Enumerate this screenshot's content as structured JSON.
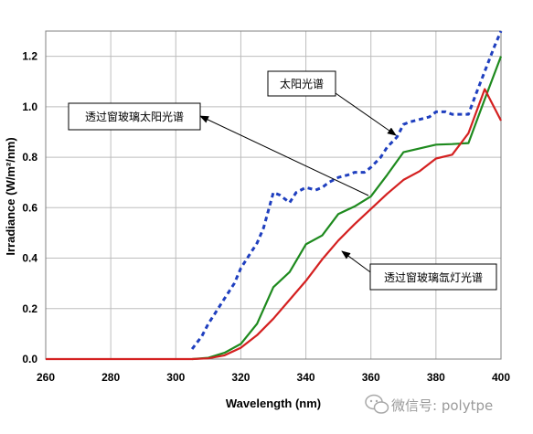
{
  "chart_data": {
    "type": "line",
    "title": "",
    "xlabel": "Wavelength (nm)",
    "ylabel": "Irradiance (W/m²/nm)",
    "xlim": [
      260,
      400
    ],
    "ylim": [
      0,
      1.3
    ],
    "xticks": [
      "260",
      "280",
      "300",
      "320",
      "340",
      "360",
      "380",
      "400"
    ],
    "yticks": [
      "0.0",
      "0.2",
      "0.4",
      "0.6",
      "0.8",
      "1.0",
      "1.2"
    ],
    "xtick_values": [
      260,
      280,
      300,
      320,
      340,
      360,
      380,
      400
    ],
    "ytick_values": [
      0,
      0.2,
      0.4,
      0.6,
      0.8,
      1.0,
      1.2
    ],
    "grid": true,
    "series": [
      {
        "name": "太阳光谱",
        "color": "#1f3fbf",
        "style": "dotted",
        "x": [
          305,
          308,
          310,
          312,
          315,
          318,
          320,
          322,
          325,
          327,
          330,
          332,
          335,
          337,
          340,
          343,
          345,
          347,
          350,
          353,
          355,
          358,
          360,
          363,
          365,
          368,
          370,
          372,
          375,
          378,
          380,
          383,
          385,
          388,
          390,
          392,
          395,
          398,
          400
        ],
        "y": [
          0.04,
          0.09,
          0.14,
          0.18,
          0.24,
          0.3,
          0.36,
          0.4,
          0.46,
          0.52,
          0.66,
          0.65,
          0.62,
          0.66,
          0.68,
          0.67,
          0.68,
          0.7,
          0.72,
          0.73,
          0.74,
          0.74,
          0.76,
          0.8,
          0.84,
          0.88,
          0.93,
          0.94,
          0.95,
          0.96,
          0.98,
          0.98,
          0.97,
          0.97,
          0.97,
          1.04,
          1.14,
          1.24,
          1.3
        ]
      },
      {
        "name": "透过窗玻璃太阳光谱",
        "color": "#1e8a1e",
        "style": "solid",
        "x": [
          305,
          310,
          315,
          320,
          325,
          330,
          335,
          340,
          345,
          350,
          355,
          360,
          365,
          370,
          375,
          380,
          385,
          390,
          395,
          400
        ],
        "y": [
          0.0,
          0.005,
          0.025,
          0.06,
          0.14,
          0.285,
          0.345,
          0.455,
          0.49,
          0.575,
          0.605,
          0.645,
          0.73,
          0.82,
          0.835,
          0.85,
          0.852,
          0.856,
          1.03,
          1.2
        ]
      },
      {
        "name": "透过窗玻璃氙灯光谱",
        "color": "#d42020",
        "style": "solid",
        "x": [
          260,
          305,
          310,
          315,
          320,
          325,
          330,
          335,
          340,
          345,
          350,
          355,
          360,
          365,
          370,
          375,
          380,
          385,
          390,
          395,
          400
        ],
        "y": [
          0.0,
          0.0,
          0.003,
          0.015,
          0.045,
          0.095,
          0.16,
          0.235,
          0.31,
          0.395,
          0.47,
          0.535,
          0.595,
          0.655,
          0.71,
          0.745,
          0.795,
          0.81,
          0.895,
          1.07,
          0.945
        ]
      }
    ],
    "annotations": [
      {
        "text": "太阳光谱",
        "target_series": "太阳光谱"
      },
      {
        "text": "透过窗玻璃太阳光谱",
        "target_series": "透过窗玻璃太阳光谱"
      },
      {
        "text": "透过窗玻璃氙灯光谱",
        "target_series": "透过窗玻璃氙灯光谱"
      }
    ]
  },
  "watermark": {
    "text": "微信号: polytpe",
    "icon": "wechat-icon"
  }
}
